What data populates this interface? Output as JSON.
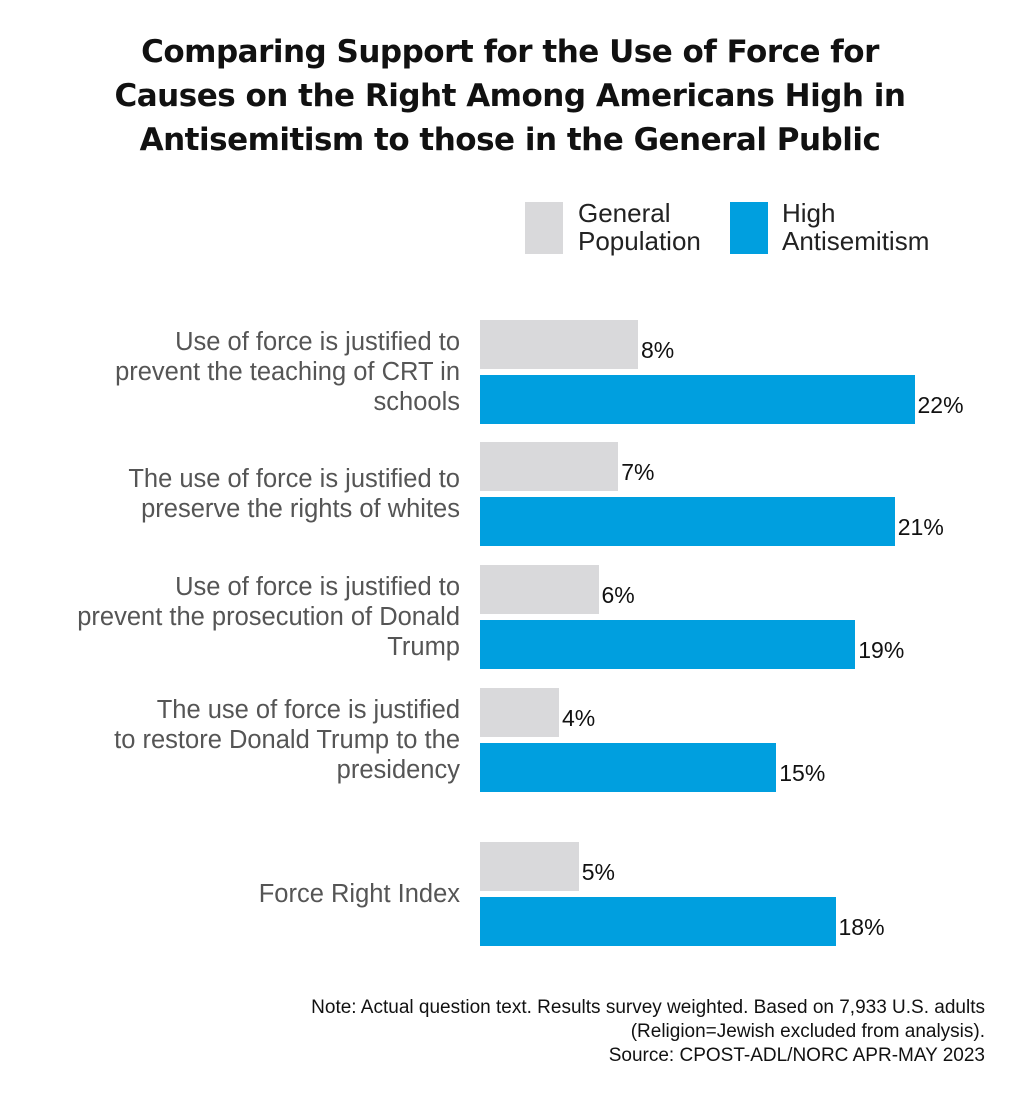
{
  "chart_data": {
    "type": "bar",
    "orientation": "horizontal",
    "title": "Comparing Support for the Use of Force for Causes on the Right Among Americans High in Antisemitism to those in the General Public",
    "title_lines": [
      "Comparing Support for the Use of Force for",
      "Causes on the Right Among Americans High in",
      "Antisemitism to those in the General Public"
    ],
    "categories": [
      [
        "Use of force is justified to",
        "prevent the teaching of CRT in",
        "schools"
      ],
      [
        "The use of force is justified to",
        "preserve the rights of whites"
      ],
      [
        "Use of force is justified to",
        "prevent the prosecution of Donald",
        "Trump"
      ],
      [
        "The use of force is justified",
        "to restore Donald Trump to the",
        "presidency"
      ],
      [
        "Force Right Index"
      ]
    ],
    "series": [
      {
        "name": "General Population",
        "name_lines": [
          "General",
          "Population"
        ],
        "color": "#D9D9DB",
        "values": [
          8,
          7,
          6,
          4,
          5
        ]
      },
      {
        "name": "High Antisemitism",
        "name_lines": [
          "High",
          "Antisemitism"
        ],
        "color": "#009FDF",
        "values": [
          22,
          21,
          19,
          15,
          18
        ]
      }
    ],
    "value_format": "%",
    "legend": "top-right",
    "grid": false,
    "xlim": [
      0,
      22
    ]
  },
  "note_lines": [
    "Note: Actual question text. Results survey weighted. Based on 7,933 U.S. adults",
    "(Religion=Jewish excluded from analysis).",
    "Source: CPOST-ADL/NORC APR-MAY 2023"
  ]
}
